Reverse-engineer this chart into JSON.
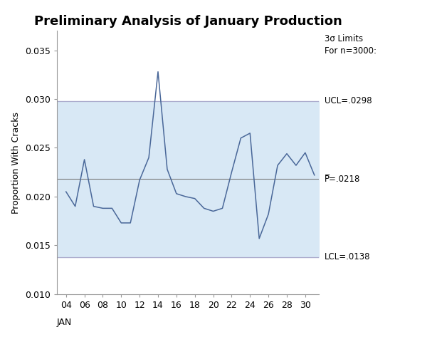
{
  "title": "Preliminary Analysis of January Production",
  "ylabel": "Proportion With Cracks",
  "ucl": 0.0298,
  "lcl": 0.0138,
  "pbar": 0.0218,
  "ylim": [
    0.01,
    0.037
  ],
  "xlim": [
    3.0,
    31.5
  ],
  "x_values": [
    4,
    5,
    6,
    7,
    8,
    9,
    10,
    11,
    12,
    13,
    14,
    15,
    16,
    17,
    18,
    19,
    20,
    21,
    22,
    23,
    24,
    25,
    26,
    27,
    28,
    29,
    30,
    31
  ],
  "y_values": [
    0.0205,
    0.019,
    0.0238,
    0.019,
    0.0188,
    0.0188,
    0.0173,
    0.0173,
    0.0217,
    0.024,
    0.0328,
    0.0228,
    0.0203,
    0.02,
    0.0198,
    0.0188,
    0.0185,
    0.0188,
    0.0225,
    0.026,
    0.0265,
    0.0157,
    0.0182,
    0.0232,
    0.0244,
    0.0232,
    0.0245,
    0.0222
  ],
  "xticks": [
    4,
    6,
    8,
    10,
    12,
    14,
    16,
    18,
    20,
    22,
    24,
    26,
    28,
    30
  ],
  "xtick_labels": [
    "04",
    "06",
    "08",
    "10",
    "12",
    "14",
    "16",
    "18",
    "20",
    "22",
    "24",
    "26",
    "28",
    "30"
  ],
  "yticks": [
    0.01,
    0.015,
    0.02,
    0.025,
    0.03,
    0.035
  ],
  "ytick_labels": [
    "0.010",
    "0.015",
    "0.020",
    "0.025",
    "0.030",
    "0.035"
  ],
  "line_color": "#4a6899",
  "fill_color": "#d8e8f5",
  "pbar_line_color": "#777777",
  "control_line_color": "#aaaacc",
  "background_color": "#ffffff",
  "right_annotation_header": "3σ Limits\nFor n=3000:",
  "ucl_label": "UCL=.0298",
  "lcl_label": "LCL=.0138",
  "pbar_label": "P̅=.0218",
  "title_fontsize": 13,
  "label_fontsize": 9,
  "annotation_fontsize": 8.5,
  "tick_fontsize": 9
}
